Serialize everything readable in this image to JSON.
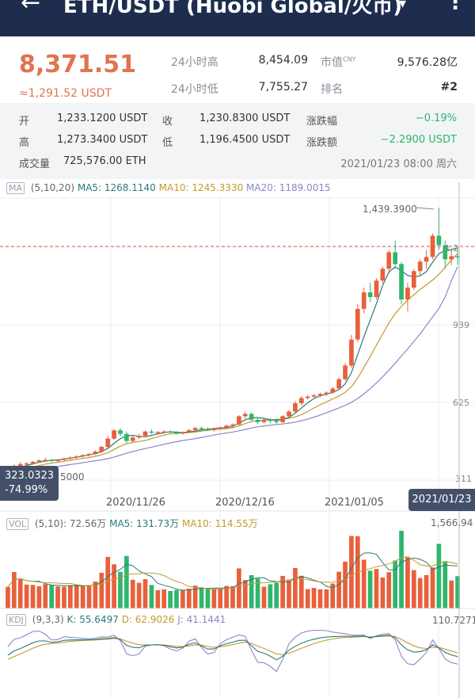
{
  "header": {
    "back_icon": "←",
    "title": "ETH/USDT (Huobi Global/火币)",
    "caret": "▾",
    "menu_icon": "⋮"
  },
  "summary": {
    "price": "8,371.51",
    "price_usdt": "≈1,291.52 USDT",
    "high24_label": "24小时高",
    "high24": "8,454.09",
    "low24_label": "24小时低",
    "low24": "7,755.27",
    "mcap_label": "市值",
    "mcap_unit": "CNY",
    "mcap": "9,576.28亿",
    "rank_label": "排名",
    "rank": "#2"
  },
  "detail": {
    "open_label": "开",
    "open": "1,233.1200 USDT",
    "close_label": "收",
    "close": "1,230.8300 USDT",
    "chg_pct_label": "涨跌幅",
    "chg_pct": "−0.19%",
    "high_label": "高",
    "high": "1,273.3400 USDT",
    "low_label": "低",
    "low": "1,196.4500 USDT",
    "chg_amt_label": "涨跌额",
    "chg_amt": "−2.2900 USDT",
    "vol_label": "成交量",
    "vol": "725,576.00 ETH",
    "datetime": "2021/01/23 08:00 周六"
  },
  "ma_legend": {
    "tag": "MA",
    "params": "(5,10,20)",
    "ma5": "MA5: 1268.1140",
    "ma10": "MA10: 1245.3330",
    "ma20": "MA20: 1189.0015"
  },
  "price_chart": {
    "max_label": "1,439.3900",
    "current_label": "1,2",
    "y_ticks": [
      "939",
      "625",
      "311"
    ],
    "x_ticks": [
      "2020/11/26",
      "2020/12/16",
      "2021/01/05"
    ],
    "min_fragment": "5000",
    "cursor_price": "323.0323",
    "cursor_pct": "-74.99%",
    "cursor_date": "2021/01/23"
  },
  "vol_legend": {
    "tag": "VOL",
    "params": "(5,10)",
    "vol": ": 72.56万",
    "ma5": "MA5: 131.73万",
    "ma10": "MA10: 114.55万",
    "max": "1,566.94"
  },
  "kdj_legend": {
    "tag": "KDJ",
    "params": "(9,3,3)",
    "k": "K: 55.6497",
    "d": "D: 62.9026",
    "j": "J: 41.1441",
    "max": "110.7271"
  },
  "colors": {
    "up": "#e8603c",
    "down": "#2fb66d",
    "header_bg": "#1e2d4e",
    "ma5": "#2b7a78",
    "ma10": "#c49a2f",
    "ma20": "#8e86c8"
  },
  "chart_data": {
    "type": "candlestick",
    "ylim": [
      311,
      1439.39
    ],
    "candles": [
      [
        325,
        330,
        318,
        328
      ],
      [
        328,
        350,
        325,
        345
      ],
      [
        345,
        360,
        340,
        352
      ],
      [
        352,
        360,
        345,
        355
      ],
      [
        355,
        365,
        350,
        362
      ],
      [
        362,
        372,
        358,
        368
      ],
      [
        368,
        378,
        362,
        370
      ],
      [
        370,
        375,
        360,
        365
      ],
      [
        365,
        372,
        358,
        370
      ],
      [
        370,
        380,
        366,
        376
      ],
      [
        376,
        385,
        370,
        380
      ],
      [
        380,
        390,
        374,
        385
      ],
      [
        385,
        395,
        380,
        390
      ],
      [
        390,
        400,
        384,
        395
      ],
      [
        395,
        410,
        390,
        405
      ],
      [
        405,
        430,
        400,
        425
      ],
      [
        425,
        470,
        420,
        460
      ],
      [
        460,
        500,
        455,
        495
      ],
      [
        495,
        505,
        470,
        480
      ],
      [
        480,
        490,
        440,
        450
      ],
      [
        450,
        470,
        445,
        465
      ],
      [
        465,
        480,
        458,
        472
      ],
      [
        472,
        495,
        468,
        490
      ],
      [
        490,
        500,
        480,
        485
      ],
      [
        485,
        492,
        478,
        488
      ],
      [
        488,
        495,
        480,
        490
      ],
      [
        490,
        495,
        482,
        486
      ],
      [
        486,
        492,
        478,
        482
      ],
      [
        482,
        490,
        476,
        488
      ],
      [
        488,
        500,
        484,
        496
      ],
      [
        496,
        510,
        490,
        505
      ],
      [
        505,
        512,
        495,
        500
      ],
      [
        500,
        508,
        492,
        498
      ],
      [
        498,
        506,
        490,
        502
      ],
      [
        502,
        512,
        496,
        508
      ],
      [
        508,
        520,
        500,
        515
      ],
      [
        515,
        525,
        505,
        520
      ],
      [
        520,
        560,
        515,
        555
      ],
      [
        555,
        575,
        545,
        565
      ],
      [
        565,
        570,
        535,
        540
      ],
      [
        540,
        550,
        520,
        530
      ],
      [
        530,
        545,
        525,
        540
      ],
      [
        540,
        548,
        525,
        535
      ],
      [
        535,
        545,
        520,
        530
      ],
      [
        530,
        560,
        525,
        555
      ],
      [
        555,
        580,
        550,
        575
      ],
      [
        575,
        620,
        570,
        610
      ],
      [
        610,
        640,
        600,
        632
      ],
      [
        632,
        645,
        625,
        638
      ],
      [
        638,
        650,
        628,
        644
      ],
      [
        644,
        655,
        635,
        650
      ],
      [
        650,
        660,
        640,
        655
      ],
      [
        655,
        680,
        650,
        672
      ],
      [
        672,
        720,
        668,
        712
      ],
      [
        712,
        780,
        705,
        770
      ],
      [
        770,
        900,
        760,
        880
      ],
      [
        880,
        1030,
        870,
        1010
      ],
      [
        1010,
        1100,
        990,
        1080
      ],
      [
        1080,
        1120,
        1040,
        1060
      ],
      [
        1060,
        1140,
        1050,
        1130
      ],
      [
        1130,
        1190,
        1120,
        1180
      ],
      [
        1180,
        1260,
        1170,
        1250
      ],
      [
        1250,
        1300,
        1180,
        1200
      ],
      [
        1200,
        1210,
        1030,
        1050
      ],
      [
        1050,
        1120,
        1000,
        1100
      ],
      [
        1100,
        1180,
        1090,
        1170
      ],
      [
        1170,
        1220,
        1150,
        1210
      ],
      [
        1210,
        1260,
        1180,
        1230
      ],
      [
        1230,
        1330,
        1220,
        1320
      ],
      [
        1320,
        1439.39,
        1260,
        1280
      ],
      [
        1280,
        1300,
        1180,
        1220
      ],
      [
        1220,
        1260,
        1196,
        1233
      ],
      [
        1233,
        1273.34,
        1196.45,
        1230.83
      ]
    ],
    "ma5": [
      322,
      330,
      338,
      346,
      353,
      360,
      365,
      368,
      370,
      373,
      377,
      381,
      386,
      391,
      397,
      405,
      418,
      440,
      460,
      472,
      474,
      470,
      468,
      474,
      480,
      486,
      489,
      487,
      486,
      488,
      492,
      497,
      500,
      503,
      505,
      507,
      512,
      525,
      540,
      548,
      549,
      546,
      540,
      538,
      541,
      550,
      568,
      590,
      612,
      630,
      642,
      649,
      656,
      668,
      692,
      740,
      816,
      892,
      962,
      1032,
      1110,
      1166,
      1188,
      1172,
      1152,
      1146,
      1150,
      1168,
      1208,
      1244,
      1258,
      1262,
      1268
    ],
    "ma10": [
      318,
      322,
      328,
      334,
      340,
      346,
      352,
      356,
      360,
      364,
      368,
      372,
      376,
      380,
      385,
      392,
      400,
      414,
      428,
      438,
      444,
      448,
      452,
      460,
      468,
      475,
      480,
      482,
      484,
      486,
      488,
      492,
      495,
      498,
      500,
      502,
      506,
      514,
      524,
      532,
      536,
      538,
      540,
      541,
      543,
      546,
      552,
      562,
      575,
      590,
      604,
      616,
      628,
      640,
      656,
      680,
      716,
      762,
      808,
      856,
      904,
      950,
      990,
      1020,
      1048,
      1070,
      1092,
      1112,
      1132,
      1156,
      1186,
      1218,
      1245
    ],
    "ma20": [
      312,
      315,
      318,
      322,
      326,
      330,
      334,
      338,
      342,
      346,
      350,
      354,
      358,
      362,
      366,
      370,
      375,
      382,
      390,
      398,
      405,
      412,
      418,
      424,
      430,
      436,
      442,
      447,
      452,
      456,
      460,
      465,
      470,
      475,
      480,
      484,
      488,
      493,
      499,
      505,
      510,
      514,
      517,
      520,
      522,
      526,
      530,
      536,
      543,
      551,
      560,
      570,
      580,
      590,
      601,
      614,
      630,
      650,
      672,
      696,
      722,
      750,
      780,
      810,
      840,
      872,
      904,
      940,
      976,
      1012,
      1060,
      1130,
      1189
    ]
  }
}
